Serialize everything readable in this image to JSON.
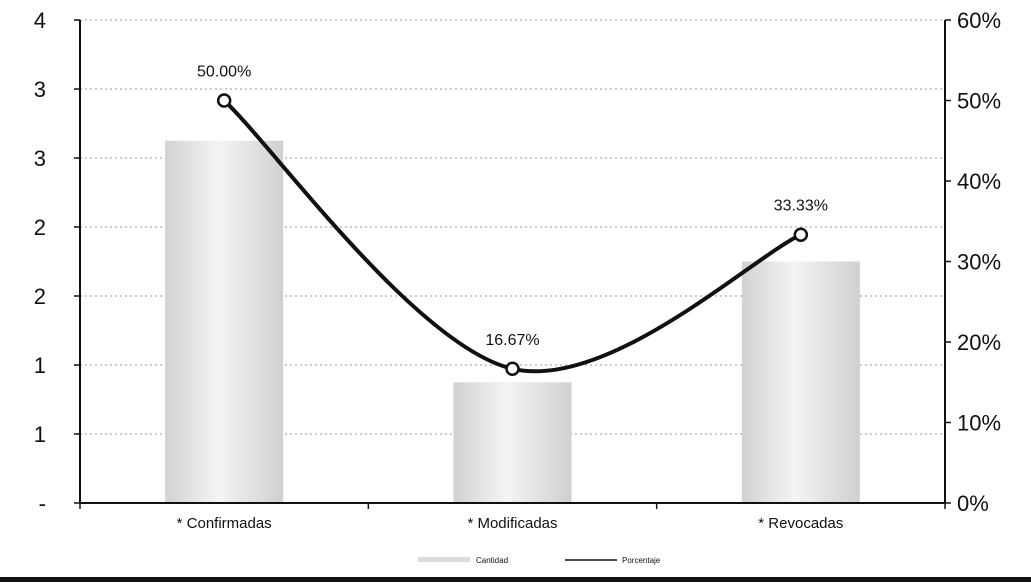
{
  "chart_data": {
    "type": "bar",
    "categories": [
      "* Confirmadas",
      "* Modificadas",
      "* Revocadas"
    ],
    "series": [
      {
        "name": "Cantidad",
        "type": "bar",
        "axis": "left",
        "values": [
          3,
          1,
          2
        ]
      },
      {
        "name": "Porcentaje",
        "type": "line",
        "axis": "right",
        "values": [
          50.0,
          16.67,
          33.33
        ]
      }
    ],
    "data_labels": [
      "50.00%",
      "16.67%",
      "33.33%"
    ],
    "y_left": {
      "ylim": [
        0,
        4
      ],
      "tick_labels": [
        "-",
        "1",
        "1",
        "2",
        "2",
        "3",
        "3",
        "4"
      ]
    },
    "y_right": {
      "ylim": [
        0,
        60
      ],
      "tick_labels": [
        "0%",
        "10%",
        "20%",
        "30%",
        "40%",
        "50%",
        "60%"
      ]
    },
    "grid": true,
    "legend_position": "bottom",
    "colors": {
      "bar": "#e6e6e6",
      "line": "#111111",
      "grid": "#9a9a9a"
    }
  }
}
